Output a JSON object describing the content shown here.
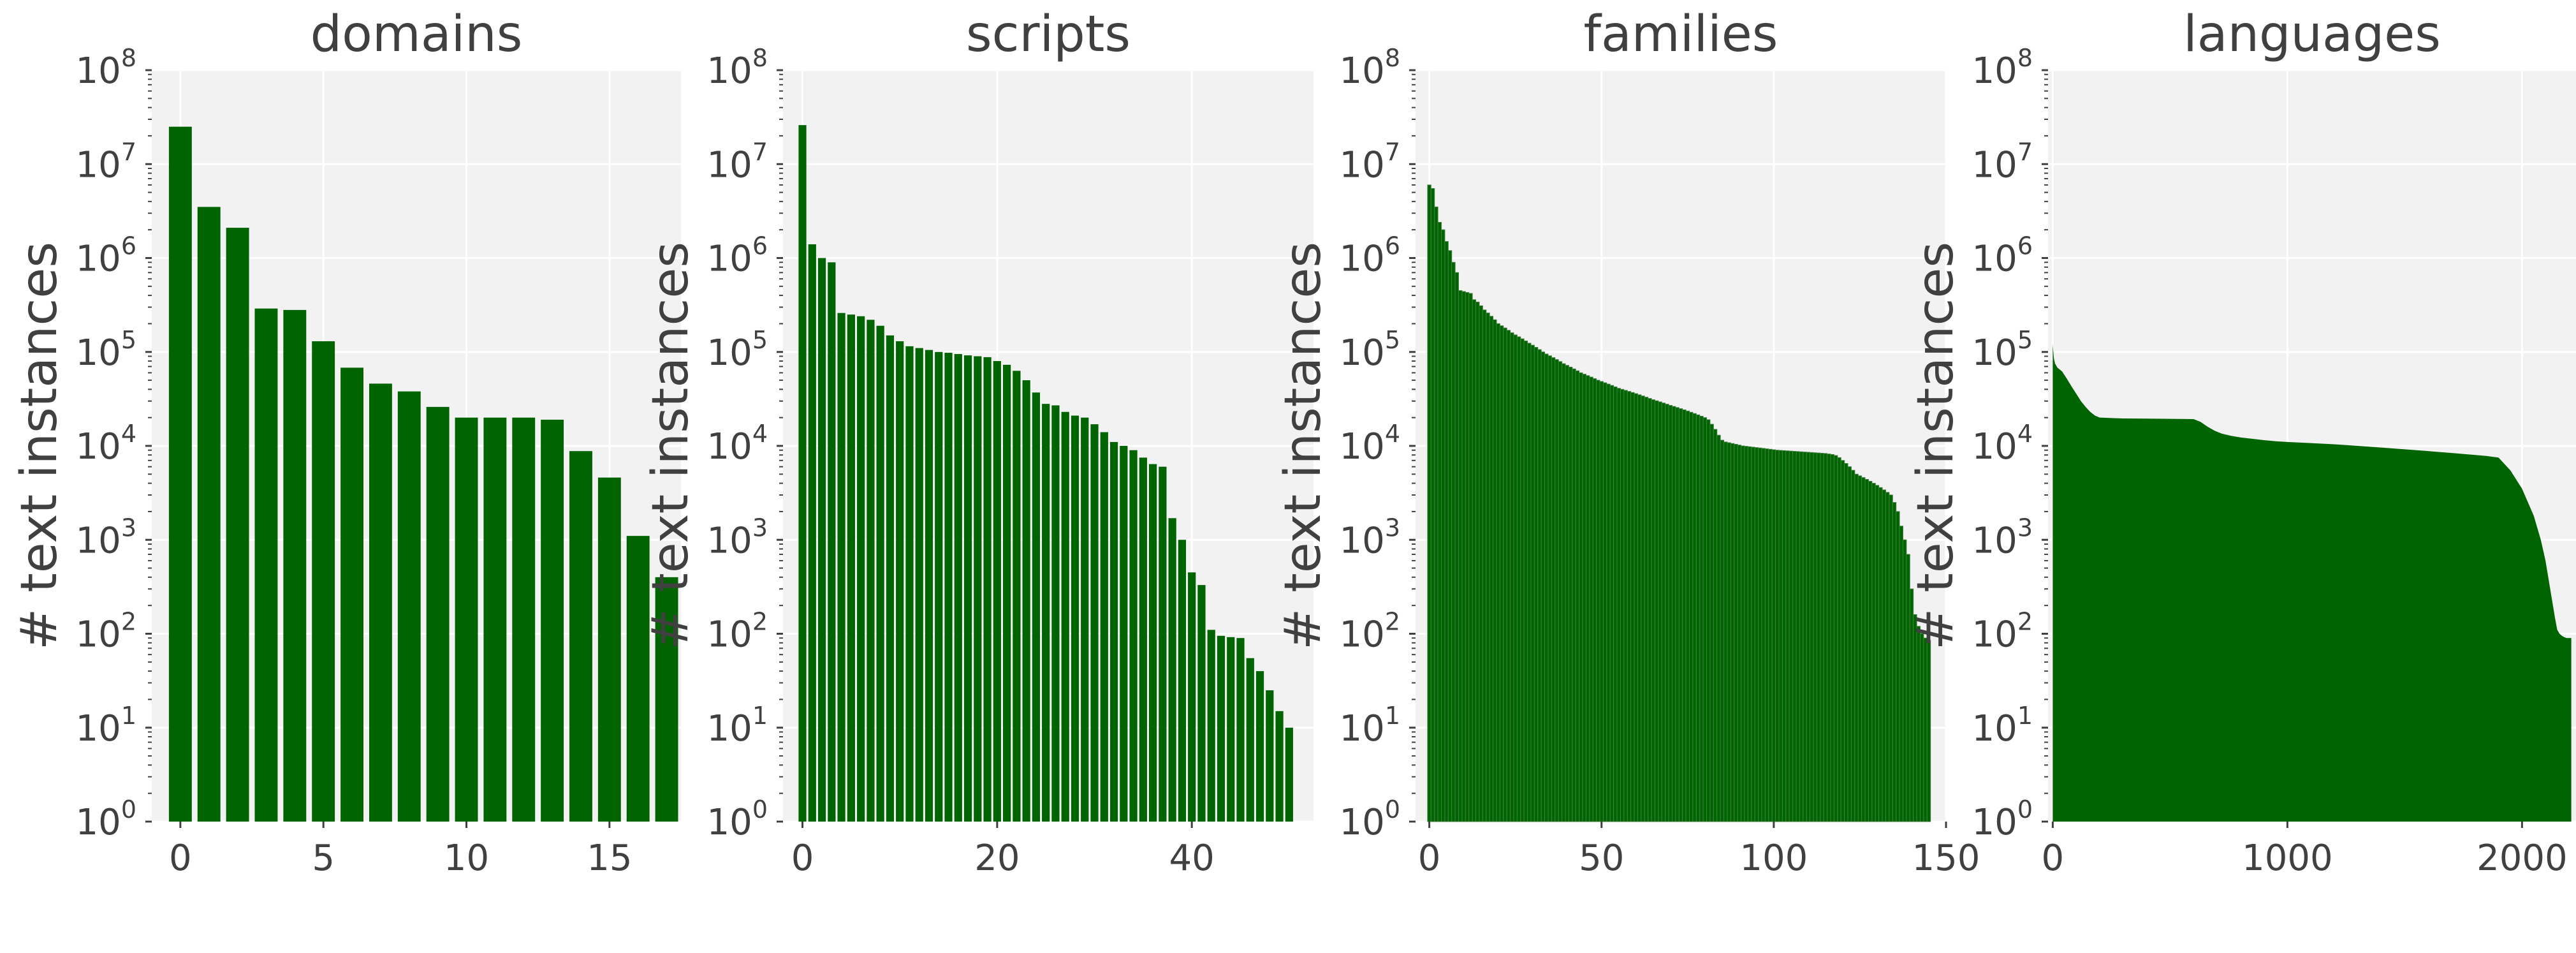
{
  "colors": {
    "bar": "#006400",
    "panel_bg": "#f2f2f2",
    "grid": "#ffffff",
    "text": "#404040"
  },
  "chart_data": [
    {
      "type": "bar",
      "title": "domains",
      "ylabel": "# text instances",
      "yscale": "log",
      "ylim": [
        1,
        100000000
      ],
      "xlim": [
        -1,
        17.5
      ],
      "xticks": [
        0,
        5,
        10,
        15
      ],
      "x": [
        0,
        1,
        2,
        3,
        4,
        5,
        6,
        7,
        8,
        9,
        10,
        11,
        12,
        13,
        14,
        15,
        16,
        17
      ],
      "values": [
        25000000,
        3500000,
        2100000,
        290000,
        280000,
        130000,
        68000,
        46000,
        38000,
        26000,
        20000,
        20000,
        20000,
        19000,
        8800,
        4600,
        1100,
        400
      ]
    },
    {
      "type": "bar",
      "title": "scripts",
      "ylabel": "# text instances",
      "yscale": "log",
      "ylim": [
        1,
        100000000
      ],
      "xlim": [
        -2,
        52.5
      ],
      "xticks": [
        0,
        20,
        40
      ],
      "x": [
        0,
        1,
        2,
        3,
        4,
        5,
        6,
        7,
        8,
        9,
        10,
        11,
        12,
        13,
        14,
        15,
        16,
        17,
        18,
        19,
        20,
        21,
        22,
        23,
        24,
        25,
        26,
        27,
        28,
        29,
        30,
        31,
        32,
        33,
        34,
        35,
        36,
        37,
        38,
        39,
        40,
        41,
        42,
        43,
        44,
        45,
        46,
        47,
        48,
        49,
        50
      ],
      "values": [
        26000000,
        1400000,
        1000000,
        900000,
        260000,
        250000,
        240000,
        220000,
        190000,
        150000,
        130000,
        115000,
        110000,
        105000,
        100000,
        98000,
        95000,
        92000,
        90000,
        88000,
        80000,
        73000,
        63000,
        50000,
        37000,
        28000,
        27000,
        23000,
        21000,
        20000,
        17000,
        14000,
        11000,
        10000,
        9000,
        7500,
        6400,
        6000,
        1700,
        1000,
        450,
        330,
        110,
        95,
        92,
        90,
        55,
        40,
        25,
        15,
        10
      ]
    },
    {
      "type": "bar",
      "title": "families",
      "ylabel": "# text instances",
      "yscale": "log",
      "ylim": [
        1,
        100000000
      ],
      "xlim": [
        -4,
        150
      ],
      "xticks": [
        0,
        50,
        100,
        150
      ],
      "x_start": 0,
      "values": [
        6000000,
        5500000,
        3500000,
        2400000,
        2000000,
        1500000,
        1200000,
        900000,
        700000,
        450000,
        440000,
        430000,
        420000,
        360000,
        340000,
        310000,
        280000,
        260000,
        240000,
        220000,
        200000,
        190000,
        180000,
        170000,
        160000,
        152000,
        145000,
        138000,
        131000,
        124000,
        118000,
        112000,
        106000,
        100000,
        95000,
        91000,
        87000,
        83000,
        79000,
        75000,
        72000,
        69000,
        66000,
        63000,
        60000,
        58000,
        56000,
        54000,
        52000,
        50000,
        48500,
        47000,
        45500,
        44000,
        42500,
        41000,
        40000,
        39000,
        38000,
        37000,
        36000,
        35000,
        34000,
        33000,
        32000,
        31000,
        30200,
        29400,
        28600,
        27800,
        27000,
        26300,
        25600,
        24900,
        24200,
        23500,
        22800,
        22100,
        21400,
        20700,
        20000,
        19000,
        17000,
        15000,
        13000,
        11500,
        11000,
        10800,
        10600,
        10400,
        10200,
        10000,
        9900,
        9800,
        9700,
        9600,
        9500,
        9400,
        9300,
        9200,
        9100,
        9000,
        8950,
        8900,
        8850,
        8800,
        8750,
        8700,
        8650,
        8600,
        8550,
        8500,
        8450,
        8400,
        8350,
        8300,
        8200,
        8100,
        7900,
        7500,
        7000,
        6500,
        6000,
        5500,
        5000,
        4800,
        4600,
        4400,
        4200,
        4000,
        3800,
        3600,
        3400,
        3200,
        3000,
        2500,
        2000,
        1400,
        1000,
        700,
        300,
        160,
        120,
        100,
        90,
        85
      ]
    },
    {
      "type": "area",
      "title": "languages",
      "ylabel": "# text instances",
      "yscale": "log",
      "ylim": [
        1,
        100000000
      ],
      "xlim": [
        -20,
        2230
      ],
      "xticks": [
        0,
        1000,
        2000
      ],
      "x": [
        0,
        5,
        10,
        20,
        40,
        60,
        80,
        100,
        120,
        140,
        160,
        180,
        200,
        250,
        300,
        400,
        500,
        600,
        630,
        660,
        690,
        720,
        760,
        800,
        850,
        900,
        950,
        1000,
        1100,
        1200,
        1300,
        1400,
        1500,
        1600,
        1700,
        1800,
        1850,
        1900,
        1950,
        2000,
        2050,
        2080,
        2100,
        2120,
        2140,
        2150,
        2160,
        2170,
        2180,
        2190,
        2200,
        2210
      ],
      "values": [
        120000,
        85000,
        75000,
        68000,
        62000,
        52000,
        43000,
        36000,
        30000,
        26000,
        23000,
        21000,
        20000,
        19800,
        19600,
        19500,
        19400,
        19300,
        18000,
        16000,
        14500,
        13500,
        12800,
        12300,
        11900,
        11500,
        11200,
        11000,
        10700,
        10400,
        10000,
        9600,
        9200,
        8800,
        8400,
        8000,
        7800,
        7500,
        5500,
        3500,
        1800,
        1000,
        600,
        300,
        150,
        110,
        100,
        95,
        92,
        90,
        90,
        90
      ]
    }
  ]
}
